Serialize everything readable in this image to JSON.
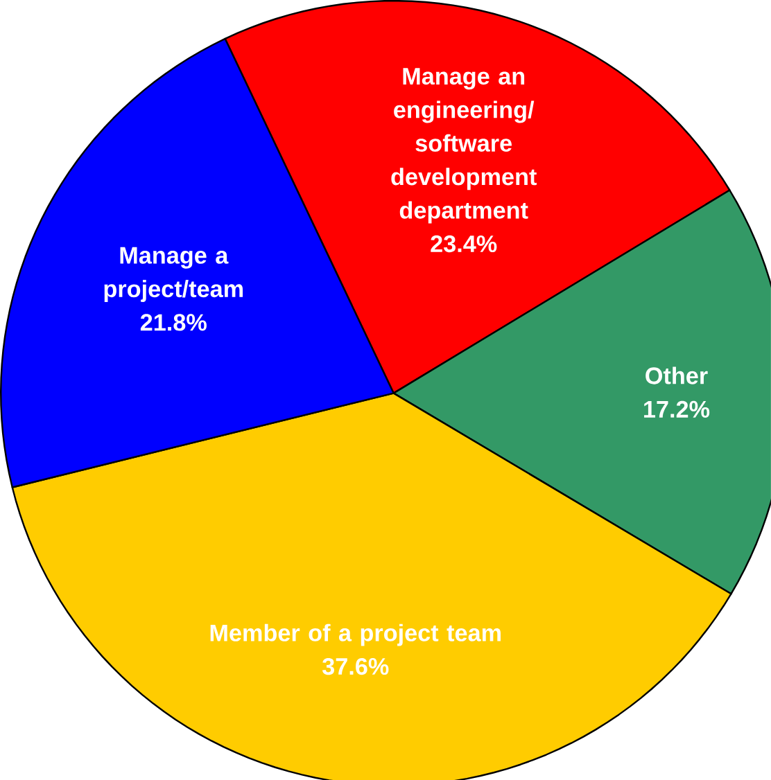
{
  "chart_data": {
    "type": "pie",
    "categories": [
      "Manage an engineering/software development department",
      "Other",
      "Member of a project team",
      "Manage a project/team"
    ],
    "values": [
      23.4,
      17.2,
      37.6,
      21.8
    ],
    "value_labels": [
      "23.4%",
      "17.2%",
      "37.6%",
      "21.8%"
    ],
    "colors": [
      "#ff0000",
      "#339966",
      "#ffcc00",
      "#0000ff"
    ]
  }
}
